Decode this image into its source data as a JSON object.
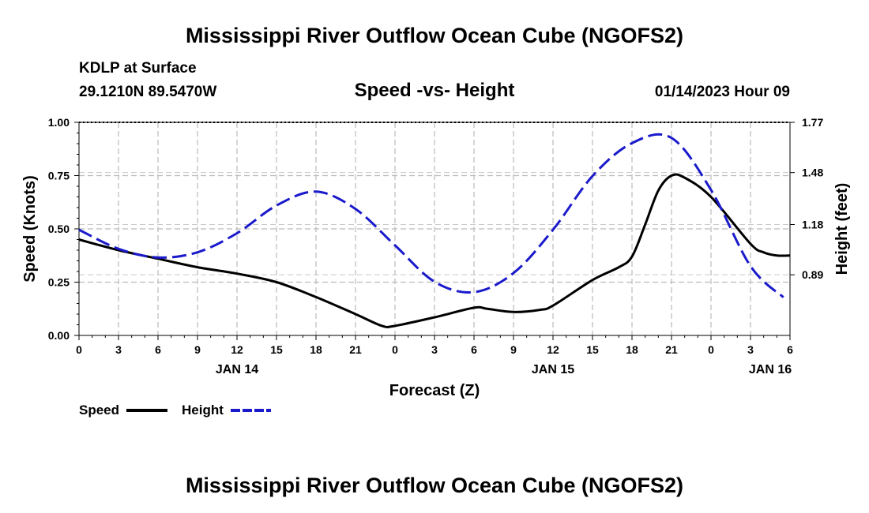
{
  "page": {
    "title_top": "Mississippi River Outflow Ocean Cube (NGOFS2)",
    "title_bottom": "Mississippi River Outflow Ocean Cube (NGOFS2)"
  },
  "header": {
    "station": "KDLP at Surface",
    "coords": "29.1210N  89.5470W",
    "datetime": "01/14/2023 Hour 09"
  },
  "chart_data": {
    "type": "line",
    "title": "Speed -vs- Height",
    "xlabel": "Forecast (Z)",
    "ylabel": "Speed (Knots)",
    "y2label": "Height (feet)",
    "x_range": [
      0,
      54
    ],
    "ylim": [
      0,
      1.0
    ],
    "y2lim": [
      0.54,
      1.77
    ],
    "y_ticks": [
      {
        "value": 0.0,
        "label": "0.00"
      },
      {
        "value": 0.25,
        "label": "0.25"
      },
      {
        "value": 0.5,
        "label": "0.50"
      },
      {
        "value": 0.75,
        "label": "0.75"
      },
      {
        "value": 1.0,
        "label": "1.00"
      }
    ],
    "y2_ticks": [
      {
        "value": 0.89,
        "label": "0.89"
      },
      {
        "value": 1.18,
        "label": "1.18"
      },
      {
        "value": 1.48,
        "label": "1.48"
      },
      {
        "value": 1.77,
        "label": "1.77"
      }
    ],
    "x_ticks": [
      {
        "value": 0,
        "label": "0"
      },
      {
        "value": 3,
        "label": "3"
      },
      {
        "value": 6,
        "label": "6"
      },
      {
        "value": 9,
        "label": "9"
      },
      {
        "value": 12,
        "label": "12"
      },
      {
        "value": 15,
        "label": "15"
      },
      {
        "value": 18,
        "label": "18"
      },
      {
        "value": 21,
        "label": "21"
      },
      {
        "value": 24,
        "label": "0"
      },
      {
        "value": 27,
        "label": "3"
      },
      {
        "value": 30,
        "label": "6"
      },
      {
        "value": 33,
        "label": "9"
      },
      {
        "value": 36,
        "label": "12"
      },
      {
        "value": 39,
        "label": "15"
      },
      {
        "value": 42,
        "label": "18"
      },
      {
        "value": 45,
        "label": "21"
      },
      {
        "value": 48,
        "label": "0"
      },
      {
        "value": 51,
        "label": "3"
      },
      {
        "value": 54,
        "label": "6"
      }
    ],
    "day_labels": [
      {
        "value": 12,
        "label": "JAN 14"
      },
      {
        "value": 36,
        "label": "JAN 15"
      },
      {
        "value": 52.5,
        "label": "JAN 16"
      }
    ],
    "series": [
      {
        "name": "Speed",
        "axis": "left",
        "color": "#000000",
        "dash": "solid",
        "x": [
          0,
          3,
          6,
          9,
          12,
          15,
          18,
          21,
          23,
          24,
          27,
          30,
          31,
          33,
          35,
          36,
          39,
          41,
          42,
          43,
          44,
          45,
          46,
          48,
          51,
          52,
          53,
          54
        ],
        "values": [
          0.45,
          0.4,
          0.36,
          0.32,
          0.29,
          0.25,
          0.18,
          0.1,
          0.045,
          0.045,
          0.085,
          0.13,
          0.125,
          0.11,
          0.12,
          0.14,
          0.26,
          0.32,
          0.37,
          0.52,
          0.68,
          0.75,
          0.74,
          0.65,
          0.43,
          0.39,
          0.375,
          0.375
        ]
      },
      {
        "name": "Height",
        "axis": "right",
        "color": "#1a1acc",
        "dash": "dashed",
        "x": [
          0,
          3,
          6,
          9,
          12,
          15,
          18,
          21,
          24,
          27,
          30,
          33,
          36,
          39,
          42,
          45,
          48,
          51,
          53.5
        ],
        "values": [
          1.15,
          1.04,
          0.99,
          1.02,
          1.13,
          1.29,
          1.37,
          1.27,
          1.06,
          0.85,
          0.79,
          0.9,
          1.15,
          1.46,
          1.65,
          1.68,
          1.38,
          0.94,
          0.76
        ]
      }
    ],
    "legend": [
      {
        "label": "Speed",
        "color": "#000000",
        "dash": "solid"
      },
      {
        "label": "Height",
        "color": "#1a1acc",
        "dash": "dashed"
      }
    ]
  }
}
